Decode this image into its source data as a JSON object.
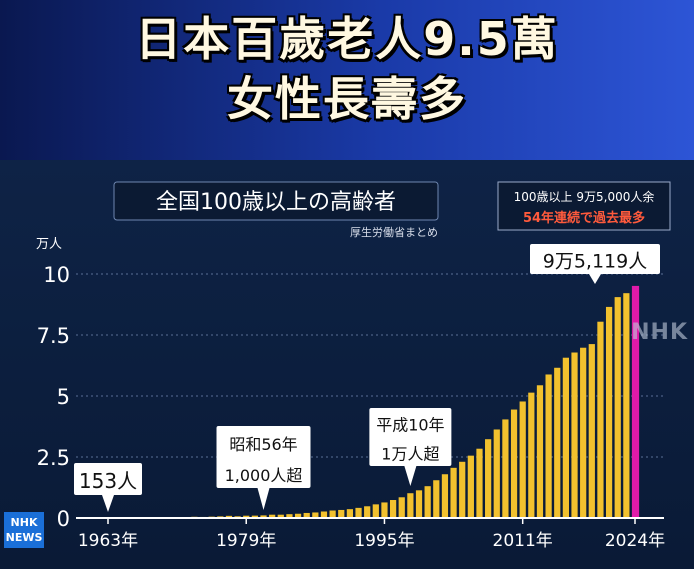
{
  "headline": {
    "line1": "日本百歲老人9.5萬",
    "line2": "女性長壽多"
  },
  "watermark": "NHK",
  "logo": {
    "top": "NHK",
    "bottom": "NEWS"
  },
  "chart_data": {
    "type": "bar",
    "title": "全国100歳以上の高齢者",
    "source": "厚生労働省まとめ",
    "y_unit": "万人",
    "ylim": [
      0,
      10
    ],
    "yticks": [
      {
        "value": 0,
        "label": "0"
      },
      {
        "value": 2.5,
        "label": "2.5"
      },
      {
        "value": 5,
        "label": "5"
      },
      {
        "value": 7.5,
        "label": "7.5"
      },
      {
        "value": 10,
        "label": "10"
      }
    ],
    "x_ticks": [
      {
        "year": 1963,
        "label": "1963年"
      },
      {
        "year": 1979,
        "label": "1979年"
      },
      {
        "year": 1995,
        "label": "1995年"
      },
      {
        "year": 2011,
        "label": "2011年"
      },
      {
        "year": 2024,
        "label": "2024年"
      }
    ],
    "categories": [
      1963,
      1964,
      1965,
      1966,
      1967,
      1968,
      1969,
      1970,
      1971,
      1972,
      1973,
      1974,
      1975,
      1976,
      1977,
      1978,
      1979,
      1980,
      1981,
      1982,
      1983,
      1984,
      1985,
      1986,
      1987,
      1988,
      1989,
      1990,
      1991,
      1992,
      1993,
      1994,
      1995,
      1996,
      1997,
      1998,
      1999,
      2000,
      2001,
      2002,
      2003,
      2004,
      2005,
      2006,
      2007,
      2008,
      2009,
      2010,
      2011,
      2012,
      2013,
      2014,
      2015,
      2016,
      2017,
      2018,
      2019,
      2020,
      2021,
      2022,
      2023,
      2024
    ],
    "values": [
      0.0153,
      0.0191,
      0.0198,
      0.0252,
      0.0252,
      0.0327,
      0.0384,
      0.031,
      0.0339,
      0.0405,
      0.0495,
      0.0427,
      0.0548,
      0.0666,
      0.0882,
      0.0695,
      0.0937,
      0.0968,
      0.1072,
      0.1354,
      0.1354,
      0.1567,
      0.174,
      0.2064,
      0.2271,
      0.2668,
      0.3078,
      0.3298,
      0.3625,
      0.4152,
      0.4802,
      0.5593,
      0.6378,
      0.7373,
      0.8491,
      1.0158,
      1.1346,
      1.3036,
      1.5475,
      1.7934,
      2.0561,
      2.3038,
      2.5554,
      2.8395,
      3.2295,
      3.6276,
      4.0399,
      4.4449,
      4.7756,
      5.1376,
      5.4397,
      5.882,
      6.1568,
      6.5692,
      6.7824,
      6.9785,
      7.1274,
      8.045,
      8.651,
      9.0526,
      9.2139,
      9.5119
    ],
    "highlight_year": 2024,
    "colors": {
      "bar": "#f2c12e",
      "highlight": "#e01aa9",
      "axis": "#ffffff",
      "text": "#ffffff"
    },
    "annotations": {
      "first": "153人",
      "y1981_line1": "昭和56年",
      "y1981_line2": "1,000人超",
      "y1998_line1": "平成10年",
      "y1998_line2": "1万人超",
      "latest": "9万5,119人",
      "note_line1": "100歳以上 9万5,000人余",
      "note_line2": "54年連続で過去最多"
    }
  }
}
